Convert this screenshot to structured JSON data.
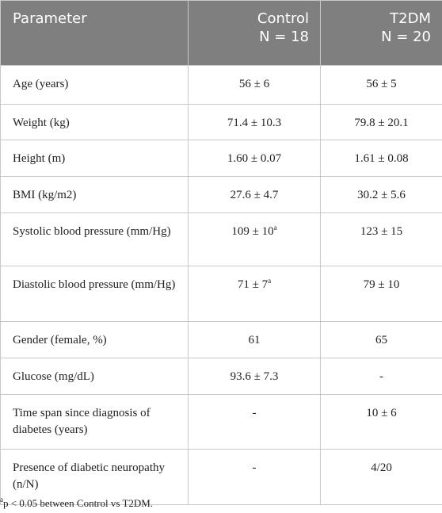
{
  "table": {
    "header": [
      [
        "Parameter"
      ],
      [
        "Control",
        "N = 18"
      ],
      [
        "T2DM",
        "N = 20"
      ]
    ],
    "rows": [
      [
        {
          "text": "Age (years)"
        },
        {
          "text": "56 ± 6"
        },
        {
          "text": "56 ± 5"
        }
      ],
      [
        {
          "text": "Weight (kg)"
        },
        {
          "text": "71.4 ± 10.3"
        },
        {
          "text": "79.8 ± 20.1"
        }
      ],
      [
        {
          "text": "Height (m)"
        },
        {
          "text": "1.60 ± 0.07"
        },
        {
          "text": "1.61 ± 0.08"
        }
      ],
      [
        {
          "text": "BMI (kg/m2)"
        },
        {
          "text": "27.6 ± 4.7"
        },
        {
          "text": "30.2 ± 5.6"
        }
      ],
      [
        {
          "text": "Systolic blood pressure (mm/Hg)"
        },
        {
          "text": "109 ± 10",
          "sup": "a"
        },
        {
          "text": "123 ± 15"
        }
      ],
      [
        {
          "text": "Diastolic blood pressure (mm/Hg)"
        },
        {
          "text": "71 ± 7",
          "sup": "a"
        },
        {
          "text": "79 ± 10"
        }
      ],
      [
        {
          "text": "Gender (female, %)"
        },
        {
          "text": "61"
        },
        {
          "text": "65"
        }
      ],
      [
        {
          "text": "Glucose (mg/dL)"
        },
        {
          "text": "93.6 ± 7.3"
        },
        {
          "text": "-"
        }
      ],
      [
        {
          "text": "Time span since diagnosis of diabetes (years)"
        },
        {
          "text": "-"
        },
        {
          "text": "10 ± 6"
        }
      ],
      [
        {
          "text": "Presence of diabetic neuropathy (n/N)"
        },
        {
          "text": "-"
        },
        {
          "text": "4/20"
        }
      ]
    ]
  },
  "footnote": {
    "marker": "a",
    "text": "p < 0.05 between Control vs T2DM."
  }
}
